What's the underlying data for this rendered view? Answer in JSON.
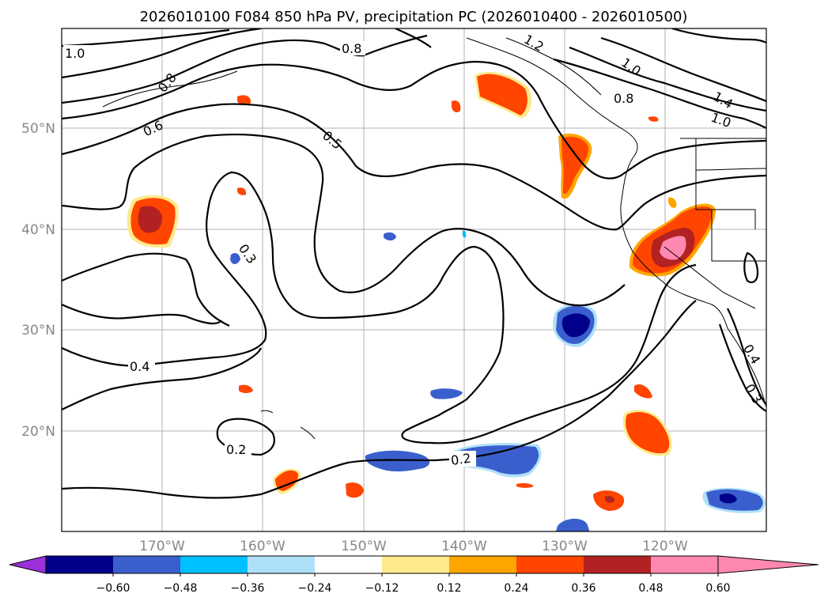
{
  "title": "2026010100 F084 850 hPa PV, precipitation PC (2026010400 - 2026010500)",
  "lat_labels": [
    "50°N",
    "40°N",
    "30°N",
    "20°N"
  ],
  "lon_labels": [
    "170°W",
    "160°W",
    "150°W",
    "140°W",
    "130°W",
    "120°W"
  ],
  "contour_labels": [
    "1.0",
    "0.8",
    "0.8",
    "0.6",
    "0.5",
    "0.3",
    "0.4",
    "0.2",
    "0.2",
    "1.2",
    "1.0",
    "1.4",
    "1.0",
    "0.8",
    "0.4",
    "0.3"
  ],
  "colorbar": {
    "ticks": [
      "−0.60",
      "−0.48",
      "−0.36",
      "−0.24",
      "−0.12",
      "0.12",
      "0.24",
      "0.36",
      "0.48",
      "0.60"
    ],
    "colors": [
      "#9b30d9",
      "#00008b",
      "#3a5fcd",
      "#00bfff",
      "#afe0fa",
      "#ffffff",
      "#ffe98a",
      "#ffa500",
      "#ff4500",
      "#b22222",
      "#ff88b0"
    ]
  }
}
